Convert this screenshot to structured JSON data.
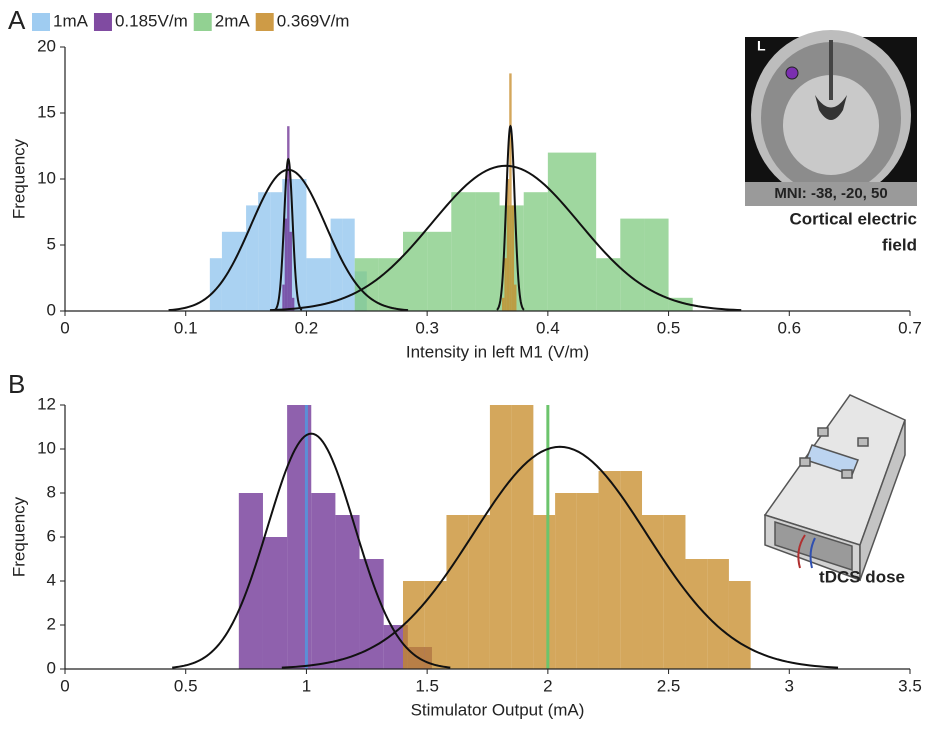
{
  "chart_data": [
    {
      "type": "histogram",
      "panel_label": "A",
      "xlabel": "Intensity in left M1 (V/m)",
      "ylabel": "Frequency",
      "xlim": [
        0,
        0.7
      ],
      "xticks": [
        0,
        0.1,
        0.2,
        0.3,
        0.4,
        0.5,
        0.6,
        0.7
      ],
      "ylim": [
        0,
        20
      ],
      "yticks": [
        0,
        5,
        10,
        15,
        20
      ],
      "series": [
        {
          "name": "1mA",
          "color": "#8ec3ee",
          "bins": [
            0.12,
            0.13,
            0.14,
            0.15,
            0.16,
            0.17,
            0.18,
            0.19,
            0.2,
            0.21,
            0.22,
            0.23,
            0.24,
            0.25
          ],
          "values": [
            4,
            6,
            6,
            8,
            9,
            9,
            10,
            10,
            4,
            4,
            7,
            7,
            3
          ]
        },
        {
          "name": "0.185V/m",
          "color": "#6a2c91",
          "bins": [
            0.18,
            0.182,
            0.184,
            0.186,
            0.188,
            0.19
          ],
          "values": [
            2,
            7,
            14,
            6,
            1
          ]
        },
        {
          "name": "2mA",
          "color": "#7fc97f",
          "bins": [
            0.24,
            0.26,
            0.28,
            0.3,
            0.32,
            0.34,
            0.36,
            0.38,
            0.4,
            0.42,
            0.44,
            0.46,
            0.48,
            0.5,
            0.52
          ],
          "values": [
            4,
            4,
            6,
            6,
            9,
            9,
            8,
            9,
            12,
            12,
            4,
            7,
            7,
            1
          ]
        },
        {
          "name": "0.369V/m",
          "color": "#c58a26",
          "bins": [
            0.362,
            0.364,
            0.366,
            0.368,
            0.37,
            0.372,
            0.374
          ],
          "values": [
            1,
            4,
            10,
            18,
            8,
            2
          ]
        }
      ],
      "fits": [
        {
          "mean": 0.185,
          "sd": 0.031,
          "peak": 10.7
        },
        {
          "mean": 0.185,
          "sd": 0.0035,
          "peak": 11.5
        },
        {
          "mean": 0.365,
          "sd": 0.061,
          "peak": 11
        },
        {
          "mean": 0.369,
          "sd": 0.0035,
          "peak": 14
        }
      ],
      "inset_label": "L",
      "inset_coords": "MNI: -38, -20, 50",
      "inset_caption": [
        "Cortical electric",
        "field"
      ]
    },
    {
      "type": "histogram",
      "panel_label": "B",
      "xlabel": "Stimulator Output (mA)",
      "ylabel": "Frequency",
      "xlim": [
        0,
        3.5
      ],
      "xticks": [
        0,
        0.5,
        1,
        1.5,
        2,
        2.5,
        3,
        3.5
      ],
      "ylim": [
        0,
        12
      ],
      "yticks": [
        0,
        2,
        4,
        6,
        8,
        10,
        12
      ],
      "series": [
        {
          "color": "#6a2c91",
          "bins": [
            0.72,
            0.82,
            0.92,
            1.02,
            1.12,
            1.22,
            1.32,
            1.42,
            1.52
          ],
          "values": [
            8,
            6,
            12,
            8,
            7,
            5,
            2,
            1
          ]
        },
        {
          "color": "#c58a26",
          "bins": [
            1.4,
            1.49,
            1.58,
            1.67,
            1.76,
            1.85,
            1.94,
            2.03,
            2.12,
            2.21,
            2.3,
            2.39,
            2.48,
            2.57,
            2.66,
            2.75,
            2.84
          ],
          "values": [
            4,
            4,
            7,
            7,
            12,
            12,
            7,
            8,
            8,
            9,
            9,
            7,
            7,
            5,
            5,
            4
          ]
        }
      ],
      "vlines": [
        {
          "x": 1,
          "color": "#5b8fd6"
        },
        {
          "x": 2,
          "color": "#6cc46c"
        }
      ],
      "fits": [
        {
          "mean": 1.02,
          "sd": 0.18,
          "peak": 10.7
        },
        {
          "mean": 2.05,
          "sd": 0.36,
          "peak": 10.1
        }
      ],
      "inset_caption": [
        "tDCS dose"
      ]
    }
  ]
}
